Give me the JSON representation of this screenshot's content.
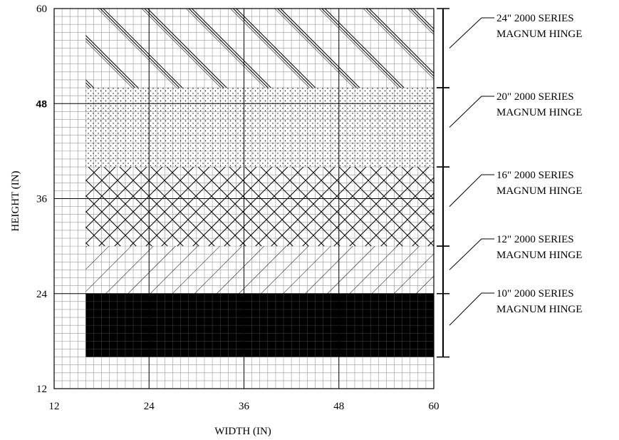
{
  "chart_data": {
    "type": "area",
    "xlabel": "WIDTH (IN)",
    "ylabel": "HEIGHT (IN)",
    "xlim": [
      12,
      60
    ],
    "ylim": [
      12,
      60
    ],
    "x_ticks": [
      "12",
      "24",
      "36",
      "48",
      "60"
    ],
    "y_ticks": [
      "12",
      "24",
      "36",
      "48",
      "60"
    ],
    "y_tick_bold": "48",
    "grid": true,
    "series": [
      {
        "label_line1": "10\" 2000 SERIES",
        "label_line2": "MAGNUM HINGE",
        "x_range": [
          16,
          60
        ],
        "y_range": [
          16,
          24
        ],
        "pattern": "solid"
      },
      {
        "label_line1": "12\" 2000 SERIES",
        "label_line2": "MAGNUM HINGE",
        "x_range": [
          16,
          60
        ],
        "y_range": [
          24,
          30
        ],
        "pattern": "diagonal"
      },
      {
        "label_line1": "16\" 2000 SERIES",
        "label_line2": "MAGNUM HINGE",
        "x_range": [
          16,
          60
        ],
        "y_range": [
          30,
          40
        ],
        "pattern": "crosshatch"
      },
      {
        "label_line1": "20\" 2000 SERIES",
        "label_line2": "MAGNUM HINGE",
        "x_range": [
          16,
          60
        ],
        "y_range": [
          40,
          50
        ],
        "pattern": "dots"
      },
      {
        "label_line1": "24\" 2000 SERIES",
        "label_line2": "MAGNUM HINGE",
        "x_range": [
          16,
          60
        ],
        "y_range": [
          50,
          60
        ],
        "pattern": "triple-diagonal"
      }
    ]
  }
}
